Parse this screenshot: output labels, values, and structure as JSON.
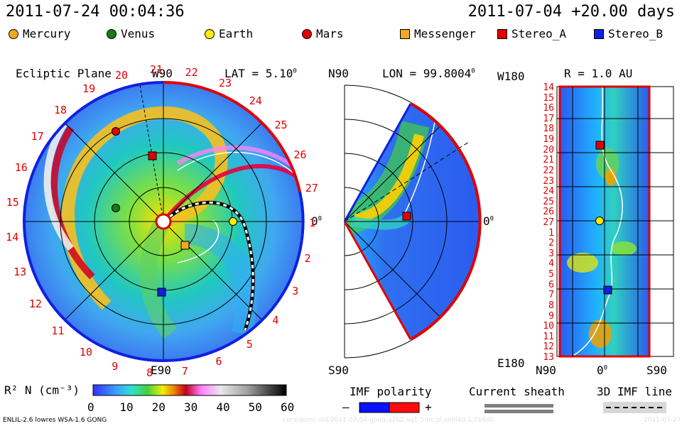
{
  "header": {
    "timestamp": "2011-07-24 00:04:36",
    "run_info": "2011-07-04 +20.00 days"
  },
  "legend": [
    {
      "name": "Mercury",
      "shape": "circle",
      "color": "#f5a623"
    },
    {
      "name": "Venus",
      "shape": "circle",
      "color": "#1a7a1a"
    },
    {
      "name": "Earth",
      "shape": "circle",
      "color": "#ffee00"
    },
    {
      "name": "Mars",
      "shape": "circle",
      "color": "#e00000"
    },
    {
      "name": "Messenger",
      "shape": "square",
      "color": "#f5a623"
    },
    {
      "name": "Stereo_A",
      "shape": "square",
      "color": "#e00000"
    },
    {
      "name": "Stereo_B",
      "shape": "square",
      "color": "#1020e0"
    }
  ],
  "panel_ecliptic": {
    "title": "Ecliptic Plane",
    "top_label": "W90",
    "lat_label": "LAT = 5.10",
    "lat_deg": "0",
    "right_label": "0",
    "right_deg": "0",
    "bottom_label": "E90",
    "rot_numbers": [
      "17",
      "18",
      "19",
      "20",
      "21",
      "22",
      "23",
      "24",
      "25",
      "26",
      "27",
      "1",
      "2",
      "3",
      "4",
      "5",
      "6",
      "7",
      "8",
      "9",
      "10",
      "11",
      "12",
      "13",
      "14",
      "15",
      "16"
    ]
  },
  "panel_meridional": {
    "top_label": "N90",
    "lon_label": "LON = 99.8004",
    "lon_deg": "0",
    "right_label": "0",
    "right_deg": "0",
    "bottom_label": "S90"
  },
  "panel_radial": {
    "top_label": "W180",
    "r_label": "R = 1.0 AU",
    "bottom_left": "E180",
    "x_left": "N90",
    "x_mid": "0",
    "x_mid_deg": "0",
    "x_right": "S90",
    "y_ticks": [
      "14",
      "15",
      "16",
      "17",
      "18",
      "19",
      "20",
      "21",
      "22",
      "23",
      "24",
      "25",
      "26",
      "27",
      "1",
      "2",
      "3",
      "4",
      "5",
      "6",
      "7",
      "8",
      "9",
      "10",
      "11",
      "12",
      "13"
    ]
  },
  "colorbar": {
    "label": "R² N (cm⁻³)",
    "ticks": [
      "0",
      "10",
      "20",
      "30",
      "40",
      "50",
      "60"
    ]
  },
  "imf": {
    "title": "IMF polarity",
    "minus": "–",
    "plus": "+",
    "negative_color": "#0a10ff",
    "positive_color": "#ff0a0a"
  },
  "sheath": {
    "title": "Current sheath"
  },
  "imf_line": {
    "title": "3D IMF line"
  },
  "footer": {
    "model": "ENLIL-2.6 lowres WSA-1.6 GONG",
    "filename": "cone/ecml-old/2011-07-04-gong-a2b2-sq1.5-mcpl.enlil4d-1.016d0",
    "date": "2011-07-27"
  }
}
